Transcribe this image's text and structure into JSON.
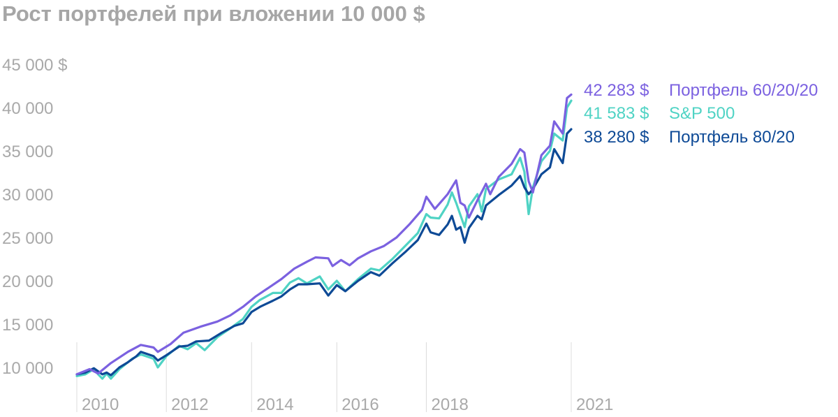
{
  "title": "Рост портфелей при вложении 10 000 $",
  "chart_data": {
    "type": "line",
    "title": "Рост портфелей при вложении 10 000 $",
    "xlabel": "",
    "ylabel": "",
    "x_range": [
      2009.4,
      2021.0
    ],
    "ylim": [
      8000,
      45000
    ],
    "y_ticks": [
      {
        "value": 45000,
        "label": "45 000 $"
      },
      {
        "value": 40000,
        "label": "40 000"
      },
      {
        "value": 35000,
        "label": "35 000"
      },
      {
        "value": 30000,
        "label": "30 000"
      },
      {
        "value": 25000,
        "label": "25 000"
      },
      {
        "value": 20000,
        "label": "20 000"
      },
      {
        "value": 15000,
        "label": "15 000"
      },
      {
        "value": 10000,
        "label": "10 000"
      }
    ],
    "x_ticks": [
      {
        "value": 2009.4,
        "label": "2010"
      },
      {
        "value": 2011.5,
        "label": "2012"
      },
      {
        "value": 2013.5,
        "label": "2014"
      },
      {
        "value": 2015.5,
        "label": "2016"
      },
      {
        "value": 2017.6,
        "label": "2018"
      },
      {
        "value": 2021.0,
        "label": "2021"
      }
    ],
    "grid": "vertical",
    "legend": "right, at line ends",
    "series": [
      {
        "name": "Портфель 60/20/20",
        "color": "#7b61e0",
        "end_label": "42 283 $",
        "points": [
          [
            2009.4,
            9200
          ],
          [
            2009.7,
            9800
          ],
          [
            2009.9,
            9300
          ],
          [
            2010.2,
            10500
          ],
          [
            2010.6,
            11800
          ],
          [
            2010.9,
            12600
          ],
          [
            2011.2,
            12300
          ],
          [
            2011.3,
            11800
          ],
          [
            2011.6,
            12700
          ],
          [
            2011.9,
            14000
          ],
          [
            2012.3,
            14700
          ],
          [
            2012.7,
            15300
          ],
          [
            2013.0,
            16000
          ],
          [
            2013.3,
            17000
          ],
          [
            2013.6,
            18200
          ],
          [
            2013.9,
            19200
          ],
          [
            2014.2,
            20200
          ],
          [
            2014.5,
            21400
          ],
          [
            2014.8,
            22200
          ],
          [
            2015.0,
            22700
          ],
          [
            2015.3,
            22600
          ],
          [
            2015.4,
            21700
          ],
          [
            2015.6,
            22400
          ],
          [
            2015.8,
            21800
          ],
          [
            2016.0,
            22600
          ],
          [
            2016.3,
            23400
          ],
          [
            2016.6,
            24000
          ],
          [
            2016.9,
            25000
          ],
          [
            2017.2,
            26500
          ],
          [
            2017.5,
            28200
          ],
          [
            2017.6,
            29700
          ],
          [
            2017.8,
            28300
          ],
          [
            2018.1,
            30000
          ],
          [
            2018.3,
            31600
          ],
          [
            2018.4,
            29000
          ],
          [
            2018.5,
            28700
          ],
          [
            2018.6,
            27300
          ],
          [
            2018.8,
            29300
          ],
          [
            2019.0,
            31200
          ],
          [
            2019.1,
            30000
          ],
          [
            2019.3,
            32000
          ],
          [
            2019.6,
            33500
          ],
          [
            2019.8,
            35200
          ],
          [
            2019.9,
            34800
          ],
          [
            2020.0,
            31500
          ],
          [
            2020.1,
            30200
          ],
          [
            2020.3,
            34500
          ],
          [
            2020.5,
            35600
          ],
          [
            2020.6,
            38400
          ],
          [
            2020.8,
            37000
          ],
          [
            2020.9,
            41100
          ],
          [
            2021.0,
            41500
          ]
        ]
      },
      {
        "name": "S&P 500",
        "color": "#4fd3c4",
        "end_label": "41 583 $",
        "points": [
          [
            2009.4,
            9000
          ],
          [
            2009.6,
            9200
          ],
          [
            2009.8,
            9800
          ],
          [
            2009.9,
            9200
          ],
          [
            2010.0,
            8700
          ],
          [
            2010.1,
            9300
          ],
          [
            2010.2,
            8700
          ],
          [
            2010.4,
            9800
          ],
          [
            2010.7,
            11000
          ],
          [
            2010.9,
            11500
          ],
          [
            2011.2,
            11000
          ],
          [
            2011.3,
            10000
          ],
          [
            2011.5,
            11300
          ],
          [
            2011.8,
            12500
          ],
          [
            2012.0,
            12100
          ],
          [
            2012.2,
            12800
          ],
          [
            2012.4,
            12000
          ],
          [
            2012.7,
            13500
          ],
          [
            2013.0,
            14500
          ],
          [
            2013.3,
            15600
          ],
          [
            2013.5,
            17000
          ],
          [
            2013.7,
            17800
          ],
          [
            2014.0,
            18600
          ],
          [
            2014.2,
            18600
          ],
          [
            2014.4,
            19800
          ],
          [
            2014.6,
            20300
          ],
          [
            2014.8,
            19700
          ],
          [
            2015.1,
            20500
          ],
          [
            2015.3,
            19000
          ],
          [
            2015.5,
            20000
          ],
          [
            2015.7,
            18800
          ],
          [
            2016.0,
            20200
          ],
          [
            2016.3,
            21400
          ],
          [
            2016.5,
            21200
          ],
          [
            2016.8,
            22500
          ],
          [
            2017.1,
            24000
          ],
          [
            2017.4,
            25500
          ],
          [
            2017.6,
            27700
          ],
          [
            2017.7,
            27300
          ],
          [
            2017.9,
            27200
          ],
          [
            2018.1,
            28800
          ],
          [
            2018.2,
            30200
          ],
          [
            2018.3,
            29000
          ],
          [
            2018.4,
            27600
          ],
          [
            2018.5,
            26200
          ],
          [
            2018.6,
            28600
          ],
          [
            2018.8,
            30000
          ],
          [
            2018.9,
            28000
          ],
          [
            2019.0,
            30600
          ],
          [
            2019.3,
            31700
          ],
          [
            2019.6,
            32300
          ],
          [
            2019.8,
            34200
          ],
          [
            2019.9,
            32600
          ],
          [
            2020.0,
            27700
          ],
          [
            2020.1,
            30800
          ],
          [
            2020.3,
            33800
          ],
          [
            2020.5,
            35000
          ],
          [
            2020.6,
            37000
          ],
          [
            2020.8,
            36200
          ],
          [
            2020.9,
            40000
          ],
          [
            2021.0,
            40800
          ]
        ]
      },
      {
        "name": "Портфель 80/20",
        "color": "#0e4a96",
        "end_label": "38 280 $",
        "points": [
          [
            2009.4,
            9200
          ],
          [
            2009.6,
            9400
          ],
          [
            2009.8,
            9900
          ],
          [
            2010.0,
            9200
          ],
          [
            2010.1,
            9400
          ],
          [
            2010.2,
            9100
          ],
          [
            2010.4,
            10000
          ],
          [
            2010.6,
            10600
          ],
          [
            2010.8,
            11300
          ],
          [
            2010.9,
            11800
          ],
          [
            2011.2,
            11300
          ],
          [
            2011.3,
            10800
          ],
          [
            2011.5,
            11400
          ],
          [
            2011.8,
            12400
          ],
          [
            2012.0,
            12500
          ],
          [
            2012.2,
            13000
          ],
          [
            2012.5,
            13100
          ],
          [
            2012.8,
            14000
          ],
          [
            2013.1,
            14800
          ],
          [
            2013.3,
            15100
          ],
          [
            2013.5,
            16400
          ],
          [
            2013.7,
            17000
          ],
          [
            2014.0,
            17700
          ],
          [
            2014.2,
            18200
          ],
          [
            2014.4,
            19000
          ],
          [
            2014.6,
            19600
          ],
          [
            2014.8,
            19600
          ],
          [
            2015.1,
            19700
          ],
          [
            2015.3,
            18300
          ],
          [
            2015.5,
            19500
          ],
          [
            2015.7,
            18800
          ],
          [
            2016.0,
            20000
          ],
          [
            2016.3,
            21000
          ],
          [
            2016.5,
            20600
          ],
          [
            2016.8,
            22000
          ],
          [
            2017.1,
            23300
          ],
          [
            2017.4,
            24700
          ],
          [
            2017.6,
            26600
          ],
          [
            2017.7,
            25600
          ],
          [
            2017.9,
            25300
          ],
          [
            2018.1,
            26500
          ],
          [
            2018.2,
            27500
          ],
          [
            2018.3,
            25900
          ],
          [
            2018.4,
            26200
          ],
          [
            2018.5,
            24400
          ],
          [
            2018.6,
            26100
          ],
          [
            2018.8,
            27500
          ],
          [
            2018.9,
            27100
          ],
          [
            2019.0,
            28700
          ],
          [
            2019.3,
            29900
          ],
          [
            2019.6,
            31000
          ],
          [
            2019.8,
            32100
          ],
          [
            2019.9,
            30800
          ],
          [
            2020.0,
            30000
          ],
          [
            2020.1,
            30600
          ],
          [
            2020.3,
            32300
          ],
          [
            2020.5,
            33100
          ],
          [
            2020.6,
            35200
          ],
          [
            2020.8,
            33600
          ],
          [
            2020.9,
            37000
          ],
          [
            2021.0,
            37500
          ]
        ]
      }
    ]
  }
}
